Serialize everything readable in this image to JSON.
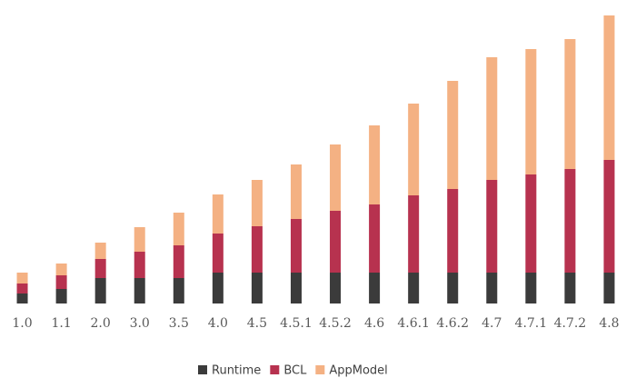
{
  "chart_data": {
    "type": "stacked-bar",
    "categories": [
      "1.0",
      "1.1",
      "2.0",
      "3.0",
      "3.5",
      "4.0",
      "4.5",
      "4.5.1",
      "4.5.2",
      "4.6",
      "4.6.1",
      "4.6.2",
      "4.7",
      "4.7.1",
      "4.7.2",
      "4.8"
    ],
    "series": [
      {
        "name": "Runtime",
        "color": "#3b3b3b",
        "values": [
          11,
          16,
          28,
          28,
          28,
          34,
          34,
          34,
          34,
          34,
          34,
          34,
          34,
          34,
          34,
          34
        ]
      },
      {
        "name": "BCL",
        "color": "#b7324f",
        "values": [
          11,
          15,
          21,
          29,
          36,
          43,
          51,
          59,
          68,
          75,
          85,
          92,
          102,
          108,
          114,
          124
        ]
      },
      {
        "name": "AppModel",
        "color": "#f4b183",
        "values": [
          12,
          13,
          18,
          27,
          36,
          43,
          51,
          60,
          73,
          87,
          101,
          119,
          135,
          138,
          143,
          159
        ]
      }
    ]
  }
}
